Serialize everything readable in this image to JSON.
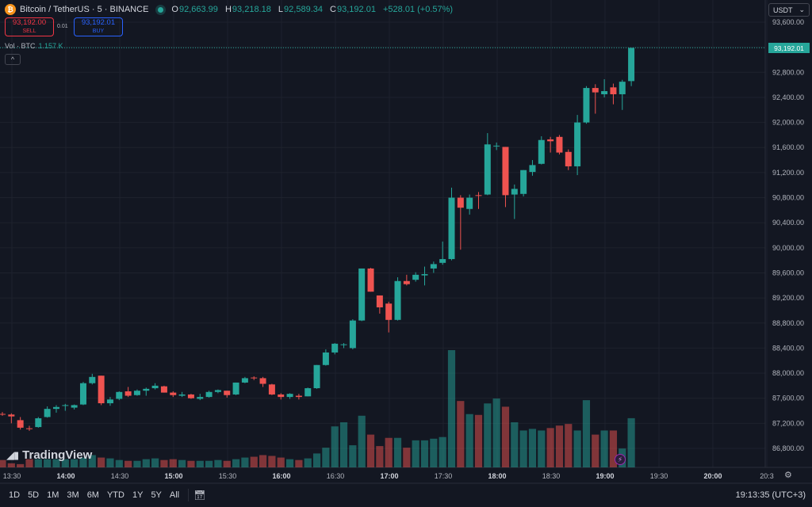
{
  "header": {
    "coin_icon": "bitcoin-icon",
    "symbol": "Bitcoin / TetherUS · 5 · BINANCE",
    "ohlc": [
      {
        "k": "O",
        "v": "92,663.99"
      },
      {
        "k": "H",
        "v": "93,218.18"
      },
      {
        "k": "L",
        "v": "92,589.34"
      },
      {
        "k": "C",
        "v": "93,192.01"
      },
      {
        "k": "",
        "v": "+528.01 (+0.57%)"
      }
    ]
  },
  "trade": {
    "sell_price": "93,192.00",
    "sell_label": "SELL",
    "spread": "0.01",
    "buy_price": "93,192.01",
    "buy_label": "BUY"
  },
  "volume": {
    "label": "Vol · BTC",
    "value": "1.157 K"
  },
  "currency": {
    "label": "USDT"
  },
  "last_price": "93,192.01",
  "brand": "TradingView",
  "range_buttons": [
    "1D",
    "5D",
    "1M",
    "3M",
    "6M",
    "YTD",
    "1Y",
    "5Y",
    "All"
  ],
  "clock": "19:13:35 (UTC+3)",
  "colors": {
    "up": "#26a69a",
    "down": "#ef5350",
    "bg": "#131722",
    "grid": "#1e222d",
    "text": "#b2b5be"
  },
  "chart_data": {
    "type": "candlestick",
    "price_axis": {
      "ticks": [
        93600,
        93200,
        92800,
        92400,
        92000,
        91600,
        91200,
        90800,
        90400,
        90000,
        89600,
        89200,
        88800,
        88400,
        88000,
        87600,
        87200,
        86800
      ],
      "range": [
        86580,
        93740
      ]
    },
    "time_axis": {
      "labels": [
        "13:30",
        "14:00",
        "14:30",
        "15:00",
        "15:30",
        "16:00",
        "16:30",
        "17:00",
        "17:30",
        "18:00",
        "18:30",
        "19:00",
        "19:30",
        "20:00",
        "20:3"
      ]
    },
    "candles": [
      [
        87350,
        87380,
        87320,
        87340
      ],
      [
        87340,
        87360,
        87200,
        87310
      ],
      [
        87250,
        87300,
        87100,
        87130
      ],
      [
        87120,
        87160,
        87080,
        87110
      ],
      [
        87140,
        87300,
        87130,
        87280
      ],
      [
        87300,
        87470,
        87290,
        87430
      ],
      [
        87430,
        87490,
        87370,
        87460
      ],
      [
        87480,
        87510,
        87400,
        87490
      ],
      [
        87450,
        87500,
        87420,
        87490
      ],
      [
        87500,
        87860,
        87490,
        87840
      ],
      [
        87840,
        87990,
        87820,
        87940
      ],
      [
        87960,
        87960,
        87490,
        87520
      ],
      [
        87520,
        87620,
        87480,
        87580
      ],
      [
        87590,
        87710,
        87570,
        87700
      ],
      [
        87710,
        87780,
        87620,
        87640
      ],
      [
        87650,
        87740,
        87640,
        87720
      ],
      [
        87720,
        87770,
        87640,
        87750
      ],
      [
        87760,
        87840,
        87740,
        87800
      ],
      [
        87790,
        87800,
        87690,
        87690
      ],
      [
        87690,
        87710,
        87620,
        87650
      ],
      [
        87640,
        87700,
        87620,
        87660
      ],
      [
        87660,
        87670,
        87590,
        87600
      ],
      [
        87590,
        87670,
        87570,
        87620
      ],
      [
        87620,
        87720,
        87610,
        87700
      ],
      [
        87700,
        87740,
        87680,
        87730
      ],
      [
        87720,
        87720,
        87610,
        87650
      ],
      [
        87660,
        87850,
        87650,
        87850
      ],
      [
        87850,
        87940,
        87840,
        87920
      ],
      [
        87930,
        87950,
        87890,
        87920
      ],
      [
        87920,
        87940,
        87780,
        87830
      ],
      [
        87820,
        87830,
        87650,
        87660
      ],
      [
        87660,
        87680,
        87580,
        87620
      ],
      [
        87620,
        87680,
        87590,
        87670
      ],
      [
        87640,
        87670,
        87580,
        87620
      ],
      [
        87630,
        87770,
        87630,
        87760
      ],
      [
        87760,
        88130,
        87750,
        88130
      ],
      [
        88130,
        88380,
        88120,
        88330
      ],
      [
        88330,
        88480,
        88300,
        88470
      ],
      [
        88460,
        88480,
        88400,
        88460
      ],
      [
        88400,
        88860,
        88380,
        88840
      ],
      [
        88840,
        89670,
        88830,
        89670
      ],
      [
        89670,
        89680,
        89300,
        89300
      ],
      [
        89240,
        89240,
        88950,
        89050
      ],
      [
        89110,
        89140,
        88650,
        88850
      ],
      [
        88850,
        89530,
        88840,
        89470
      ],
      [
        89470,
        89570,
        89400,
        89420
      ],
      [
        89490,
        89610,
        89460,
        89570
      ],
      [
        89560,
        89700,
        89400,
        89580
      ],
      [
        89670,
        89780,
        89600,
        89740
      ],
      [
        89760,
        90100,
        89730,
        89820
      ],
      [
        89820,
        90960,
        89800,
        90800
      ],
      [
        90800,
        90840,
        89970,
        90640
      ],
      [
        90620,
        90850,
        90530,
        90800
      ],
      [
        90840,
        90890,
        90620,
        90830
      ],
      [
        90850,
        91830,
        90840,
        91650
      ],
      [
        91630,
        91680,
        91560,
        91630
      ],
      [
        91610,
        91610,
        90650,
        90840
      ],
      [
        90850,
        91010,
        90460,
        90940
      ],
      [
        90860,
        91240,
        90820,
        91240
      ],
      [
        91210,
        91400,
        91150,
        91320
      ],
      [
        91340,
        91780,
        91330,
        91720
      ],
      [
        91730,
        91770,
        91520,
        91700
      ],
      [
        91770,
        91800,
        91490,
        91520
      ],
      [
        91530,
        91570,
        91240,
        91300
      ],
      [
        91300,
        92120,
        91160,
        92000
      ],
      [
        92000,
        92580,
        91980,
        92550
      ],
      [
        92550,
        92610,
        92140,
        92480
      ],
      [
        92450,
        92690,
        92400,
        92500
      ],
      [
        92560,
        92620,
        92290,
        92450
      ],
      [
        92450,
        92680,
        92200,
        92650
      ],
      [
        92660,
        93190,
        92580,
        93190
      ]
    ],
    "volumes": [
      0.09,
      0.05,
      0.04,
      0.1,
      0.1,
      0.1,
      0.1,
      0.1,
      0.1,
      0.12,
      0.15,
      0.12,
      0.11,
      0.09,
      0.08,
      0.08,
      0.1,
      0.11,
      0.09,
      0.1,
      0.09,
      0.08,
      0.08,
      0.08,
      0.09,
      0.08,
      0.1,
      0.12,
      0.13,
      0.15,
      0.14,
      0.12,
      0.1,
      0.09,
      0.11,
      0.17,
      0.24,
      0.5,
      0.55,
      0.27,
      0.63,
      0.4,
      0.26,
      0.36,
      0.36,
      0.24,
      0.33,
      0.33,
      0.35,
      0.37,
      1.43,
      0.81,
      0.65,
      0.64,
      0.78,
      0.84,
      0.74,
      0.55,
      0.45,
      0.47,
      0.45,
      0.48,
      0.51,
      0.53,
      0.45,
      0.82,
      0.4,
      0.45,
      0.45,
      0.23,
      0.6
    ],
    "volume_axis": {
      "max": 1.43,
      "unit": "K BTC"
    }
  }
}
